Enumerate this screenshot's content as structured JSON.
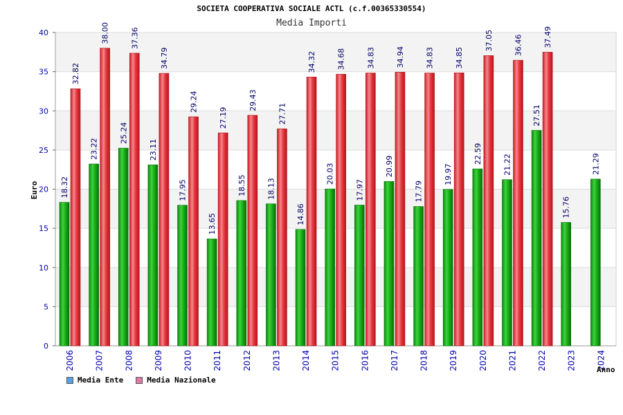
{
  "chart_data": {
    "type": "bar",
    "title": "SOCIETA COOPERATIVA SOCIALE ACTL (c.f.00365330554)",
    "subtitle": "Media Importi",
    "xlabel": "Anno",
    "ylabel": "Euro",
    "ylim": [
      0,
      40
    ],
    "yticks": [
      0,
      5,
      10,
      15,
      20,
      25,
      30,
      35,
      40
    ],
    "grid": true,
    "legend_position": "bottom-left",
    "categories": [
      "2006",
      "2007",
      "2008",
      "2009",
      "2010",
      "2011",
      "2012",
      "2013",
      "2014",
      "2015",
      "2016",
      "2017",
      "2018",
      "2019",
      "2020",
      "2021",
      "2022",
      "2023",
      "2024"
    ],
    "series": [
      {
        "name": "Media Ente",
        "color": "#1fae1f",
        "legend_color": "#5aa0e6",
        "values": [
          18.32,
          23.22,
          25.24,
          23.11,
          17.95,
          13.65,
          18.55,
          18.13,
          14.86,
          20.03,
          17.97,
          20.99,
          17.79,
          19.97,
          22.59,
          21.22,
          27.51,
          15.76,
          21.29
        ],
        "labels": [
          "18.32",
          "23.22",
          "25.24",
          "23.11",
          "17.95",
          "13.65",
          "18.55",
          "18.13",
          "14.86",
          "20.03",
          "17.97",
          "20.99",
          "17.79",
          "19.97",
          "22.59",
          "21.22",
          "27.51",
          "15.76",
          "21.29"
        ]
      },
      {
        "name": "Media Nazionale",
        "color": "#e8343c",
        "legend_color": "#e07aa8",
        "values": [
          32.82,
          38.0,
          37.36,
          34.79,
          29.24,
          27.19,
          29.43,
          27.71,
          34.32,
          34.68,
          34.83,
          34.94,
          34.83,
          34.85,
          37.05,
          36.46,
          37.49,
          null,
          null
        ],
        "labels": [
          "32.82",
          "38.00",
          "37.36",
          "34.79",
          "29.24",
          "27.19",
          "29.43",
          "27.71",
          "34.32",
          "34.68",
          "34.83",
          "34.94",
          "34.83",
          "34.85",
          "37.05",
          "36.46",
          "37.49",
          null,
          null
        ]
      }
    ]
  }
}
